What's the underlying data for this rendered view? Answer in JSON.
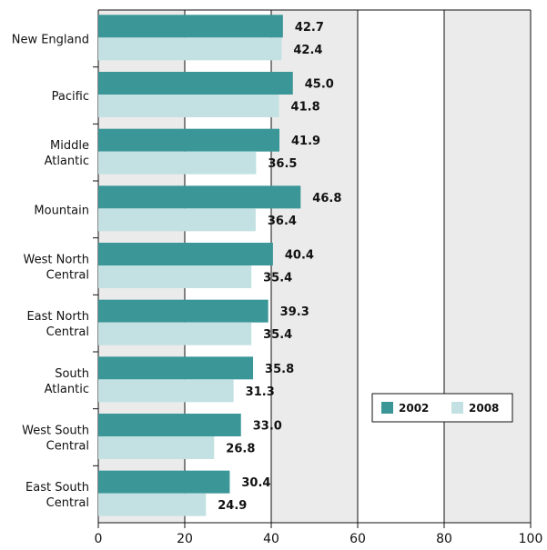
{
  "chart_data": {
    "type": "bar",
    "orientation": "horizontal",
    "categories": [
      [
        "New England"
      ],
      [
        "Pacific"
      ],
      [
        "Middle",
        "Atlantic"
      ],
      [
        "Mountain"
      ],
      [
        "West North",
        "Central"
      ],
      [
        "East North",
        "Central"
      ],
      [
        "South",
        "Atlantic"
      ],
      [
        "West South",
        "Central"
      ],
      [
        "East South",
        "Central"
      ]
    ],
    "series": [
      {
        "name": "2002",
        "color": "#3a9697",
        "values": [
          42.7,
          45.0,
          41.9,
          46.8,
          40.4,
          39.3,
          35.8,
          33.0,
          30.4
        ],
        "labels": [
          "42.7",
          "45.0",
          "41.9",
          "46.8",
          "40.4",
          "39.3",
          "35.8",
          "33.0",
          "30.4"
        ]
      },
      {
        "name": "2008",
        "color": "#c3e1e2",
        "values": [
          42.4,
          41.8,
          36.5,
          36.4,
          35.4,
          35.4,
          31.3,
          26.8,
          24.9
        ],
        "labels": [
          "42.4",
          "41.8",
          "36.5",
          "36.4",
          "35.4",
          "35.4",
          "31.3",
          "26.8",
          "24.9"
        ]
      }
    ],
    "xlim": [
      0,
      100
    ],
    "xticks": [
      "0",
      "20",
      "40",
      "60",
      "80",
      "100"
    ],
    "band_colors": [
      "#ebebeb",
      "#ffffff"
    ],
    "grid": true,
    "legend": "right"
  }
}
